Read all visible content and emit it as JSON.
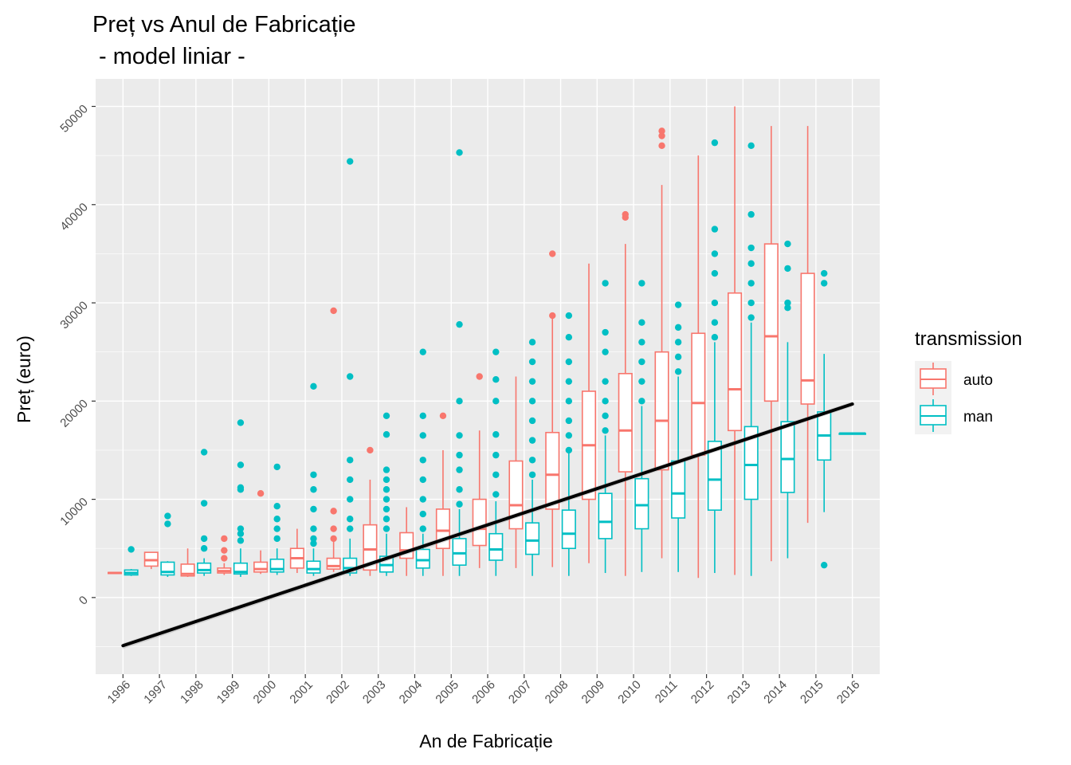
{
  "chart_data": {
    "type": "box",
    "title": "Preț vs Anul de Fabricație",
    "subtitle": " - model liniar -",
    "xlabel": "An de Fabricație",
    "ylabel": "Preț (euro)",
    "categories": [
      "1996",
      "1997",
      "1998",
      "1999",
      "2000",
      "2001",
      "2002",
      "2003",
      "2004",
      "2005",
      "2006",
      "2007",
      "2008",
      "2009",
      "2010",
      "2011",
      "2012",
      "2013",
      "2014",
      "2015",
      "2016"
    ],
    "y_ticks": [
      0,
      10000,
      20000,
      30000,
      40000,
      50000
    ],
    "ylim": [
      -7800,
      52800
    ],
    "grid": true,
    "legend": {
      "title": "transmission",
      "position": "right",
      "entries": [
        {
          "name": "auto",
          "color": "#F8766D"
        },
        {
          "name": "man",
          "color": "#00BFC4"
        }
      ]
    },
    "series": [
      {
        "name": "auto",
        "color": "#F8766D",
        "boxes": [
          {
            "year": "1996",
            "min": 2400,
            "q1": 2450,
            "median": 2500,
            "q3": 2550,
            "max": 2600,
            "outliers": []
          },
          {
            "year": "1997",
            "min": 2900,
            "q1": 3200,
            "median": 3800,
            "q3": 4600,
            "max": 4600,
            "outliers": []
          },
          {
            "year": "1998",
            "min": 2100,
            "q1": 2200,
            "median": 2400,
            "q3": 3400,
            "max": 5000,
            "outliers": []
          },
          {
            "year": "1999",
            "min": 2300,
            "q1": 2500,
            "median": 2700,
            "q3": 3000,
            "max": 3500,
            "outliers": [
              4000,
              4800,
              6000
            ]
          },
          {
            "year": "2000",
            "min": 2400,
            "q1": 2600,
            "median": 2900,
            "q3": 3600,
            "max": 4800,
            "outliers": [
              10600
            ]
          },
          {
            "year": "2001",
            "min": 2500,
            "q1": 3000,
            "median": 4000,
            "q3": 5000,
            "max": 7000,
            "outliers": []
          },
          {
            "year": "2002",
            "min": 2600,
            "q1": 2900,
            "median": 3200,
            "q3": 4000,
            "max": 6000,
            "outliers": [
              6000,
              7000,
              8800,
              29200
            ]
          },
          {
            "year": "2003",
            "min": 2200,
            "q1": 2800,
            "median": 4900,
            "q3": 7400,
            "max": 12000,
            "outliers": [
              15000
            ]
          },
          {
            "year": "2004",
            "min": 2200,
            "q1": 4000,
            "median": 4800,
            "q3": 6600,
            "max": 9200,
            "outliers": []
          },
          {
            "year": "2005",
            "min": 2200,
            "q1": 5000,
            "median": 6800,
            "q3": 9000,
            "max": 15000,
            "outliers": [
              18500
            ]
          },
          {
            "year": "2006",
            "min": 3000,
            "q1": 5300,
            "median": 7000,
            "q3": 10000,
            "max": 17000,
            "outliers": [
              22500
            ]
          },
          {
            "year": "2007",
            "min": 3000,
            "q1": 7000,
            "median": 9400,
            "q3": 13900,
            "max": 22500,
            "outliers": []
          },
          {
            "year": "2008",
            "min": 3100,
            "q1": 9000,
            "median": 12500,
            "q3": 16800,
            "max": 28600,
            "outliers": [
              28700,
              35000
            ]
          },
          {
            "year": "2009",
            "min": 3500,
            "q1": 10000,
            "median": 15500,
            "q3": 21000,
            "max": 34000,
            "outliers": []
          },
          {
            "year": "2010",
            "min": 2200,
            "q1": 12800,
            "median": 17000,
            "q3": 22800,
            "max": 36000,
            "outliers": [
              38700,
              39000
            ]
          },
          {
            "year": "2011",
            "min": 4000,
            "q1": 13000,
            "median": 18000,
            "q3": 25000,
            "max": 42000,
            "outliers": [
              46000,
              47000,
              47500
            ]
          },
          {
            "year": "2012",
            "min": 2000,
            "q1": 14500,
            "median": 19800,
            "q3": 26900,
            "max": 45000,
            "outliers": []
          },
          {
            "year": "2013",
            "min": 2300,
            "q1": 17000,
            "median": 21200,
            "q3": 31000,
            "max": 50000,
            "outliers": []
          },
          {
            "year": "2014",
            "min": 3700,
            "q1": 20000,
            "median": 26600,
            "q3": 36000,
            "max": 48000,
            "outliers": []
          },
          {
            "year": "2015",
            "min": 7600,
            "q1": 19700,
            "median": 22100,
            "q3": 33000,
            "max": 48000,
            "outliers": []
          }
        ]
      },
      {
        "name": "man",
        "color": "#00BFC4",
        "boxes": [
          {
            "year": "1996",
            "min": 2200,
            "q1": 2300,
            "median": 2500,
            "q3": 2800,
            "max": 2900,
            "outliers": [
              4900
            ]
          },
          {
            "year": "1997",
            "min": 2100,
            "q1": 2300,
            "median": 2600,
            "q3": 3600,
            "max": 3700,
            "outliers": [
              7500,
              8300
            ]
          },
          {
            "year": "1998",
            "min": 2200,
            "q1": 2500,
            "median": 2800,
            "q3": 3500,
            "max": 4000,
            "outliers": [
              5000,
              6000,
              9600,
              14800
            ]
          },
          {
            "year": "1999",
            "min": 2100,
            "q1": 2400,
            "median": 2600,
            "q3": 3500,
            "max": 5000,
            "outliers": [
              5800,
              6500,
              7000,
              11000,
              11200,
              13500,
              17800
            ]
          },
          {
            "year": "2000",
            "min": 2300,
            "q1": 2600,
            "median": 2900,
            "q3": 3900,
            "max": 5000,
            "outliers": [
              6000,
              7000,
              8000,
              9300,
              13300
            ]
          },
          {
            "year": "2001",
            "min": 2200,
            "q1": 2500,
            "median": 2900,
            "q3": 3700,
            "max": 5000,
            "outliers": [
              5500,
              6000,
              7000,
              9000,
              11000,
              12500,
              21500
            ]
          },
          {
            "year": "2002",
            "min": 2200,
            "q1": 2500,
            "median": 3000,
            "q3": 4000,
            "max": 6000,
            "outliers": [
              7000,
              8000,
              10000,
              12000,
              14000,
              22500,
              44400
            ]
          },
          {
            "year": "2003",
            "min": 2200,
            "q1": 2600,
            "median": 3300,
            "q3": 4200,
            "max": 6500,
            "outliers": [
              7000,
              8000,
              9000,
              10000,
              11000,
              12000,
              13000,
              16600,
              18500
            ]
          },
          {
            "year": "2004",
            "min": 2200,
            "q1": 3000,
            "median": 3800,
            "q3": 4900,
            "max": 6500,
            "outliers": [
              7000,
              8500,
              10000,
              12000,
              14000,
              16500,
              18500,
              25000
            ]
          },
          {
            "year": "2005",
            "min": 2200,
            "q1": 3300,
            "median": 4500,
            "q3": 6000,
            "max": 9000,
            "outliers": [
              9500,
              11000,
              13000,
              14500,
              16500,
              20000,
              27800,
              45300
            ]
          },
          {
            "year": "2006",
            "min": 2200,
            "q1": 3800,
            "median": 4900,
            "q3": 6500,
            "max": 9800,
            "outliers": [
              10500,
              12500,
              14500,
              16600,
              20000,
              22200,
              25000
            ]
          },
          {
            "year": "2007",
            "min": 2200,
            "q1": 4400,
            "median": 5800,
            "q3": 7600,
            "max": 12000,
            "outliers": [
              12500,
              14000,
              16000,
              18000,
              20000,
              22000,
              24000,
              26000
            ]
          },
          {
            "year": "2008",
            "min": 2200,
            "q1": 5000,
            "median": 6500,
            "q3": 8900,
            "max": 14800,
            "outliers": [
              15000,
              16500,
              18000,
              20000,
              22000,
              24000,
              26500,
              28700
            ]
          },
          {
            "year": "2009",
            "min": 2500,
            "q1": 6000,
            "median": 7700,
            "q3": 10600,
            "max": 16500,
            "outliers": [
              17000,
              18500,
              20000,
              22000,
              25000,
              27000,
              32000
            ]
          },
          {
            "year": "2010",
            "min": 2600,
            "q1": 7000,
            "median": 9400,
            "q3": 12100,
            "max": 19500,
            "outliers": [
              20000,
              22000,
              24000,
              26000,
              28000,
              32000
            ]
          },
          {
            "year": "2011",
            "min": 2600,
            "q1": 8100,
            "median": 10600,
            "q3": 13900,
            "max": 22500,
            "outliers": [
              23000,
              24500,
              26000,
              27500,
              29800
            ]
          },
          {
            "year": "2012",
            "min": 2500,
            "q1": 8900,
            "median": 12000,
            "q3": 15900,
            "max": 26000,
            "outliers": [
              26500,
              28000,
              30000,
              33000,
              35000,
              37500,
              46300
            ]
          },
          {
            "year": "2013",
            "min": 2200,
            "q1": 10000,
            "median": 13500,
            "q3": 17400,
            "max": 28000,
            "outliers": [
              28500,
              30000,
              32000,
              34000,
              35600,
              39000,
              46000
            ]
          },
          {
            "year": "2014",
            "min": 4000,
            "q1": 10700,
            "median": 14100,
            "q3": 17900,
            "max": 26000,
            "outliers": [
              29500,
              30000,
              33500,
              36000
            ]
          },
          {
            "year": "2015",
            "min": 8700,
            "q1": 14000,
            "median": 16500,
            "q3": 18900,
            "max": 24800,
            "outliers": [
              3300,
              32000,
              33000
            ]
          },
          {
            "year": "2016",
            "min": 16700,
            "q1": 16700,
            "median": 16700,
            "q3": 16700,
            "max": 16700,
            "outliers": []
          }
        ]
      }
    ],
    "trend_line": {
      "name": "model liniar",
      "x_start": "1996",
      "y_start": -4900,
      "x_end": "2016",
      "y_end": 19700
    }
  }
}
